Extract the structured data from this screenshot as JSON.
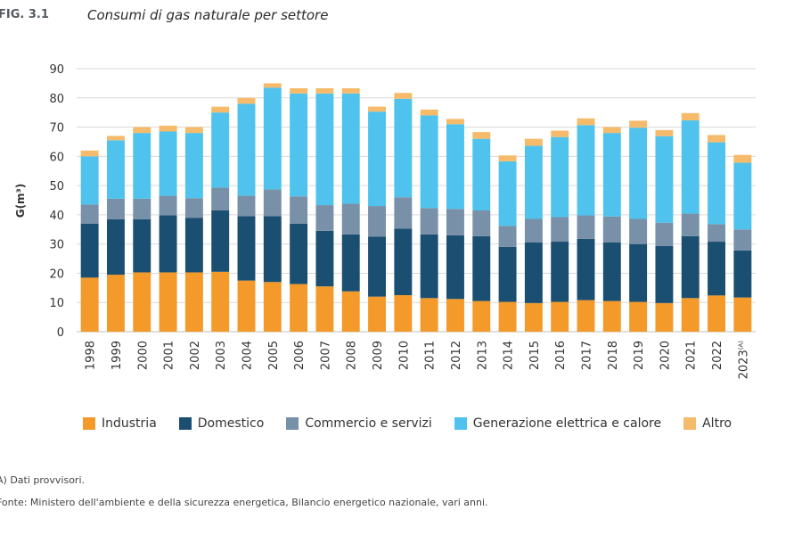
{
  "figure": {
    "label": "FIG. 3.1",
    "title": "Consumi di gas naturale per settore"
  },
  "footnotes": {
    "note": "A)  Dati provvisori.",
    "source": "Fonte: Ministero dell'ambiente e della sicurezza energetica, Bilancio energetico nazionale, vari anni."
  },
  "chart_data": {
    "type": "bar",
    "stacked": true,
    "title": "Consumi di gas naturale per settore",
    "xlabel": "",
    "ylabel": "G(m³)",
    "ylim": [
      0,
      90
    ],
    "yticks": [
      0,
      10,
      20,
      30,
      40,
      50,
      60,
      70,
      80,
      90
    ],
    "grid": true,
    "legend_position": "bottom",
    "categories": [
      "1998",
      "1999",
      "2000",
      "2001",
      "2002",
      "2003",
      "2004",
      "2005",
      "2006",
      "2007",
      "2008",
      "2009",
      "2010",
      "2011",
      "2012",
      "2013",
      "2014",
      "2015",
      "2016",
      "2017",
      "2018",
      "2019",
      "2020",
      "2021",
      "2022",
      "2023"
    ],
    "category_superscripts": {
      "2023": "(A)"
    },
    "series": [
      {
        "name": "Industria",
        "color": "#f39a2b",
        "values": [
          18.5,
          19.5,
          20.3,
          20.3,
          20.3,
          20.5,
          17.5,
          17.0,
          16.3,
          15.5,
          13.8,
          12.0,
          12.5,
          11.5,
          11.2,
          10.5,
          10.2,
          9.8,
          10.2,
          10.8,
          10.5,
          10.2,
          9.8,
          11.5,
          12.4,
          11.7
        ]
      },
      {
        "name": "Domestico",
        "color": "#1b4f72",
        "values": [
          18.5,
          19.0,
          18.2,
          19.5,
          18.7,
          21.0,
          22.0,
          22.5,
          20.7,
          19.0,
          19.5,
          20.5,
          22.8,
          21.8,
          21.8,
          22.2,
          18.8,
          20.8,
          20.6,
          21.0,
          20.1,
          19.8,
          19.5,
          21.2,
          18.4,
          16.1
        ]
      },
      {
        "name": "Commercio e servizi",
        "color": "#7890a8",
        "values": [
          6.5,
          7.0,
          7.0,
          6.7,
          6.7,
          7.8,
          7.0,
          9.2,
          9.3,
          8.8,
          10.5,
          10.5,
          10.7,
          9.0,
          9.0,
          8.8,
          7.2,
          8.0,
          8.4,
          8.0,
          8.8,
          8.6,
          8.0,
          7.7,
          6.0,
          7.2
        ]
      },
      {
        "name": "Generazione elettrica e calore",
        "color": "#4fc3ed",
        "values": [
          16.5,
          20.0,
          22.5,
          22.0,
          22.3,
          25.7,
          31.5,
          34.8,
          35.2,
          38.2,
          37.7,
          32.3,
          33.7,
          31.7,
          29.0,
          24.5,
          22.1,
          25.0,
          27.4,
          30.9,
          28.6,
          31.2,
          29.6,
          31.9,
          28.0,
          22.8
        ]
      },
      {
        "name": "Altro",
        "color": "#f6bb6a",
        "values": [
          2.0,
          1.5,
          2.0,
          2.0,
          2.0,
          2.0,
          2.0,
          1.5,
          1.8,
          1.8,
          1.8,
          1.7,
          2.0,
          2.0,
          1.8,
          2.3,
          2.0,
          2.4,
          2.2,
          2.3,
          2.0,
          2.4,
          2.1,
          2.5,
          2.5,
          2.7
        ]
      }
    ]
  }
}
